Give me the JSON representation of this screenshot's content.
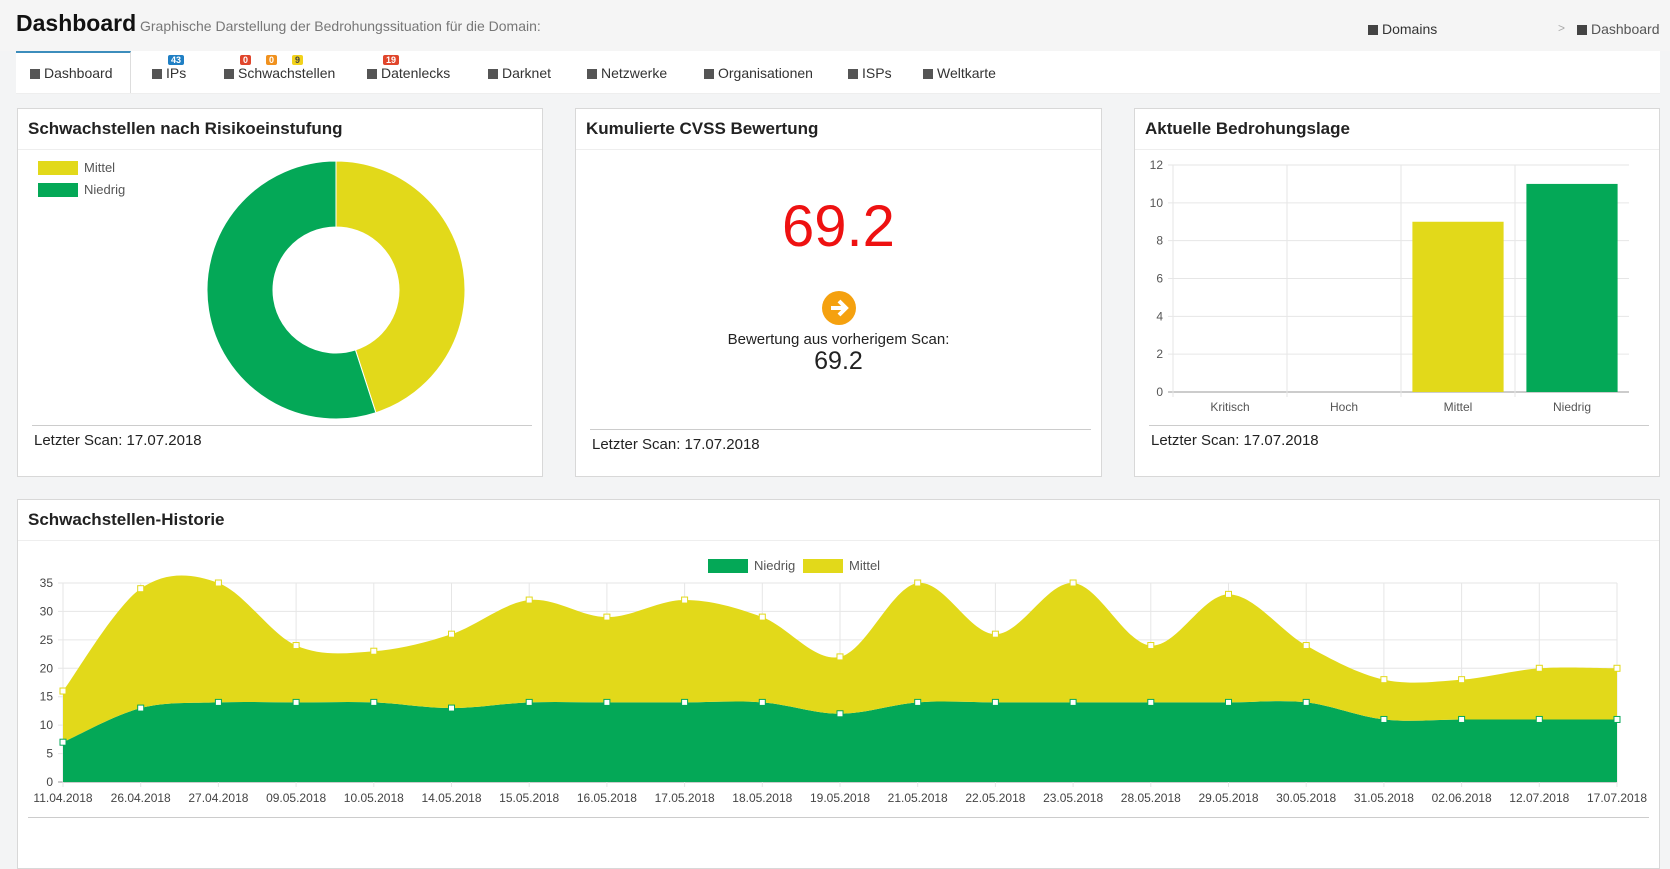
{
  "header": {
    "title": "Dashboard",
    "subtitle": "Graphische Darstellung der Bedrohungssituation für die Domain:",
    "breadcrumb": [
      "Domains",
      "Dashboard"
    ],
    "separator": ">"
  },
  "tabs": [
    {
      "label": "Dashboard",
      "badges": []
    },
    {
      "label": "IPs",
      "badges": [
        {
          "value": 43,
          "color": "#1f7fc4"
        }
      ]
    },
    {
      "label": "Schwachstellen",
      "badges": [
        {
          "value": 0,
          "color": "#e0452b"
        },
        {
          "value": 0,
          "color": "#f0911e"
        },
        {
          "value": 9,
          "color": "#f2d21b"
        }
      ]
    },
    {
      "label": "Datenlecks",
      "badges": [
        {
          "value": 19,
          "color": "#e0452b"
        }
      ]
    },
    {
      "label": "Darknet",
      "badges": []
    },
    {
      "label": "Netzwerke",
      "badges": []
    },
    {
      "label": "Organisationen",
      "badges": []
    },
    {
      "label": "ISPs",
      "badges": []
    },
    {
      "label": "Weltkarte",
      "badges": []
    }
  ],
  "panels": [
    {
      "title": "Schwachstellen nach Risikoeinstufung",
      "footer": "Letzter Scan: 17.07.2018"
    },
    {
      "title": "Kumulierte CVSS Bewertung",
      "score": 69.2,
      "previous_label": "Bewertung aus vorherigem Scan:",
      "previous_score": 69.2,
      "footer": "Letzter Scan: 17.07.2018"
    },
    {
      "title": "Aktuelle Bedrohungslage",
      "footer": "Letzter Scan: 17.07.2018"
    },
    {
      "title": "Schwachstellen-Historie"
    }
  ],
  "chart_data": [
    {
      "type": "doughnut",
      "categories": [
        "Mittel",
        "Niedrig"
      ],
      "values": [
        9,
        11
      ],
      "colors": [
        "#e2d91a",
        "#04a857"
      ],
      "legend": "top-left"
    },
    {
      "type": "bar",
      "categories": [
        "Kritisch",
        "Hoch",
        "Mittel",
        "Niedrig"
      ],
      "values": [
        0,
        0,
        9,
        11
      ],
      "colors": [
        "#e0452b",
        "#f0911e",
        "#e2d91a",
        "#04a857"
      ],
      "ylim": [
        0,
        12
      ],
      "yticks": [
        0,
        2,
        4,
        6,
        8,
        10,
        12
      ],
      "grid": true
    },
    {
      "type": "area",
      "stacked": true,
      "legend": "top",
      "grid": true,
      "categories": [
        "11.04.2018",
        "26.04.2018",
        "27.04.2018",
        "09.05.2018",
        "10.05.2018",
        "14.05.2018",
        "15.05.2018",
        "16.05.2018",
        "17.05.2018",
        "18.05.2018",
        "19.05.2018",
        "21.05.2018",
        "22.05.2018",
        "23.05.2018",
        "28.05.2018",
        "29.05.2018",
        "30.05.2018",
        "31.05.2018",
        "02.06.2018",
        "12.07.2018",
        "17.07.2018"
      ],
      "series": [
        {
          "name": "Niedrig",
          "color": "#04a857",
          "values": [
            7,
            13,
            14,
            14,
            14,
            13,
            14,
            14,
            14,
            14,
            12,
            14,
            14,
            14,
            14,
            14,
            14,
            11,
            11,
            11,
            11
          ]
        },
        {
          "name": "Mittel",
          "color": "#e2d91a",
          "values": [
            9,
            21,
            21,
            10,
            9,
            13,
            18,
            15,
            18,
            15,
            10,
            21,
            12,
            21,
            10,
            19,
            10,
            7,
            7,
            9,
            9
          ]
        }
      ],
      "ylim": [
        0,
        35
      ],
      "yticks": [
        0,
        5,
        10,
        15,
        20,
        25,
        30,
        35
      ]
    }
  ]
}
